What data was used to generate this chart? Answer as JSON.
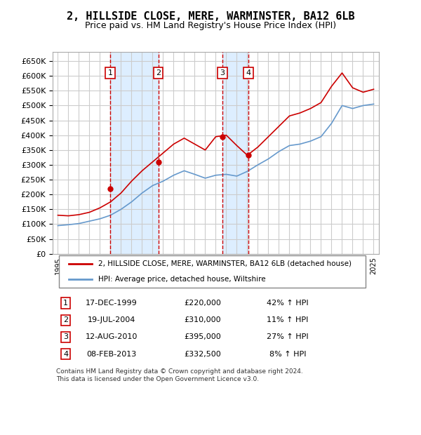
{
  "title": "2, HILLSIDE CLOSE, MERE, WARMINSTER, BA12 6LB",
  "subtitle": "Price paid vs. HM Land Registry's House Price Index (HPI)",
  "footer": "Contains HM Land Registry data © Crown copyright and database right 2024.\nThis data is licensed under the Open Government Licence v3.0.",
  "legend_line1": "2, HILLSIDE CLOSE, MERE, WARMINSTER, BA12 6LB (detached house)",
  "legend_line2": "HPI: Average price, detached house, Wiltshire",
  "sales": [
    {
      "num": 1,
      "date": "17-DEC-1999",
      "price": 220000,
      "pct": "42%",
      "year": 1999.96
    },
    {
      "num": 2,
      "date": "19-JUL-2004",
      "price": 310000,
      "pct": "11%",
      "year": 2004.54
    },
    {
      "num": 3,
      "date": "12-AUG-2010",
      "price": 395000,
      "pct": "27%",
      "year": 2010.62
    },
    {
      "num": 4,
      "date": "08-FEB-2013",
      "price": 332500,
      "pct": "8%",
      "year": 2013.1
    }
  ],
  "hpi_years": [
    1995,
    1996,
    1997,
    1998,
    1999,
    2000,
    2001,
    2002,
    2003,
    2004,
    2005,
    2006,
    2007,
    2008,
    2009,
    2010,
    2011,
    2012,
    2013,
    2014,
    2015,
    2016,
    2017,
    2018,
    2019,
    2020,
    2021,
    2022,
    2023,
    2024,
    2025
  ],
  "hpi_values": [
    95000,
    98000,
    102000,
    110000,
    118000,
    130000,
    150000,
    175000,
    205000,
    230000,
    245000,
    265000,
    280000,
    268000,
    255000,
    265000,
    268000,
    262000,
    278000,
    300000,
    320000,
    345000,
    365000,
    370000,
    380000,
    395000,
    440000,
    500000,
    490000,
    500000,
    505000
  ],
  "red_years": [
    1995,
    1996,
    1997,
    1998,
    1999,
    2000,
    2001,
    2002,
    2003,
    2004,
    2005,
    2006,
    2007,
    2008,
    2009,
    2010,
    2011,
    2012,
    2013,
    2014,
    2015,
    2016,
    2017,
    2018,
    2019,
    2020,
    2021,
    2022,
    2023,
    2024,
    2025
  ],
  "red_values": [
    130000,
    128000,
    132000,
    140000,
    155000,
    175000,
    205000,
    245000,
    280000,
    310000,
    340000,
    370000,
    390000,
    370000,
    350000,
    395000,
    400000,
    365000,
    332500,
    360000,
    395000,
    430000,
    465000,
    475000,
    490000,
    510000,
    565000,
    610000,
    560000,
    545000,
    555000
  ],
  "xlim": [
    1994.5,
    2025.5
  ],
  "ylim": [
    0,
    680000
  ],
  "yticks": [
    0,
    50000,
    100000,
    150000,
    200000,
    250000,
    300000,
    350000,
    400000,
    450000,
    500000,
    550000,
    600000,
    650000
  ],
  "xticks": [
    1995,
    1996,
    1997,
    1998,
    1999,
    2000,
    2001,
    2002,
    2003,
    2004,
    2005,
    2006,
    2007,
    2008,
    2009,
    2010,
    2011,
    2012,
    2013,
    2014,
    2015,
    2016,
    2017,
    2018,
    2019,
    2020,
    2021,
    2022,
    2023,
    2024,
    2025
  ],
  "red_color": "#cc0000",
  "blue_color": "#6699cc",
  "shade_color": "#ddeeff",
  "grid_color": "#cccccc",
  "marker_box_color": "#cc0000",
  "bg_color": "#ffffff"
}
